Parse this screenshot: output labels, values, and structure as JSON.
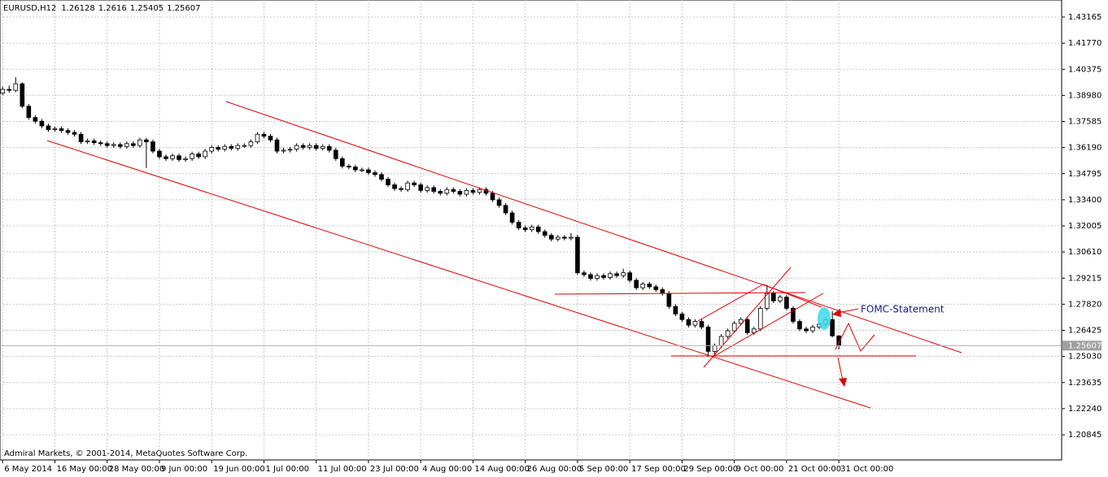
{
  "chart_data": {
    "type": "candlestick",
    "title": "EURUSD,H12",
    "ohlc": [
      [
        1.391,
        1.3945,
        1.39,
        1.393
      ],
      [
        1.393,
        1.395,
        1.3912,
        1.3925
      ],
      [
        1.3925,
        1.3995,
        1.3915,
        1.396
      ],
      [
        1.396,
        1.3968,
        1.383,
        1.384
      ],
      [
        1.384,
        1.3852,
        1.3768,
        1.378
      ],
      [
        1.378,
        1.3792,
        1.3748,
        1.376
      ],
      [
        1.376,
        1.3772,
        1.3723,
        1.3735
      ],
      [
        1.3735,
        1.3747,
        1.3703,
        1.3715
      ],
      [
        1.3715,
        1.3732,
        1.3703,
        1.372
      ],
      [
        1.372,
        1.3732,
        1.3698,
        1.371
      ],
      [
        1.371,
        1.3722,
        1.3688,
        1.37
      ],
      [
        1.37,
        1.3712,
        1.3678,
        1.369
      ],
      [
        1.369,
        1.3702,
        1.3638,
        1.365
      ],
      [
        1.365,
        1.3667,
        1.3638,
        1.3655
      ],
      [
        1.3655,
        1.3667,
        1.3633,
        1.3645
      ],
      [
        1.3645,
        1.3657,
        1.3628,
        1.364
      ],
      [
        1.364,
        1.3652,
        1.3618,
        1.363
      ],
      [
        1.363,
        1.3647,
        1.3618,
        1.3635
      ],
      [
        1.3635,
        1.3647,
        1.3613,
        1.3625
      ],
      [
        1.3625,
        1.3652,
        1.3613,
        1.364
      ],
      [
        1.364,
        1.3652,
        1.3618,
        1.363
      ],
      [
        1.363,
        1.3672,
        1.3618,
        1.366
      ],
      [
        1.366,
        1.3672,
        1.351,
        1.365
      ],
      [
        1.365,
        1.3662,
        1.3588,
        1.36
      ],
      [
        1.36,
        1.3612,
        1.3558,
        1.357
      ],
      [
        1.357,
        1.3582,
        1.3548,
        1.356
      ],
      [
        1.356,
        1.3587,
        1.3548,
        1.3575
      ],
      [
        1.3575,
        1.3587,
        1.3543,
        1.3555
      ],
      [
        1.3555,
        1.3572,
        1.3543,
        1.356
      ],
      [
        1.356,
        1.3597,
        1.3548,
        1.3585
      ],
      [
        1.3585,
        1.3597,
        1.3558,
        1.357
      ],
      [
        1.357,
        1.3612,
        1.3558,
        1.36
      ],
      [
        1.36,
        1.3632,
        1.3588,
        1.362
      ],
      [
        1.362,
        1.3632,
        1.3598,
        1.361
      ],
      [
        1.361,
        1.3637,
        1.3598,
        1.3625
      ],
      [
        1.3625,
        1.3637,
        1.3603,
        1.3615
      ],
      [
        1.3615,
        1.3642,
        1.3603,
        1.363
      ],
      [
        1.363,
        1.3642,
        1.3618,
        1.363
      ],
      [
        1.363,
        1.3662,
        1.3618,
        1.365
      ],
      [
        1.365,
        1.3702,
        1.3638,
        1.369
      ],
      [
        1.369,
        1.3702,
        1.3668,
        1.368
      ],
      [
        1.368,
        1.3692,
        1.3648,
        1.366
      ],
      [
        1.366,
        1.3672,
        1.3588,
        1.36
      ],
      [
        1.36,
        1.3617,
        1.3588,
        1.3605
      ],
      [
        1.3605,
        1.3622,
        1.3593,
        1.361
      ],
      [
        1.361,
        1.3642,
        1.3598,
        1.363
      ],
      [
        1.363,
        1.3642,
        1.3608,
        1.362
      ],
      [
        1.362,
        1.3642,
        1.3608,
        1.363
      ],
      [
        1.363,
        1.3642,
        1.3603,
        1.3615
      ],
      [
        1.3615,
        1.3637,
        1.3603,
        1.3625
      ],
      [
        1.3625,
        1.3637,
        1.3593,
        1.3605
      ],
      [
        1.3605,
        1.3617,
        1.3548,
        1.356
      ],
      [
        1.356,
        1.3572,
        1.3508,
        1.352
      ],
      [
        1.352,
        1.3532,
        1.3503,
        1.3515
      ],
      [
        1.3515,
        1.3527,
        1.3488,
        1.35
      ],
      [
        1.35,
        1.3512,
        1.3488,
        1.35
      ],
      [
        1.35,
        1.3512,
        1.3473,
        1.3485
      ],
      [
        1.3485,
        1.3497,
        1.3463,
        1.3475
      ],
      [
        1.3475,
        1.3487,
        1.3438,
        1.345
      ],
      [
        1.345,
        1.3462,
        1.3408,
        1.342
      ],
      [
        1.342,
        1.3432,
        1.3388,
        1.34
      ],
      [
        1.34,
        1.3412,
        1.3383,
        1.3395
      ],
      [
        1.3395,
        1.3442,
        1.3383,
        1.343
      ],
      [
        1.343,
        1.3442,
        1.3408,
        1.342
      ],
      [
        1.342,
        1.3432,
        1.3378,
        1.339
      ],
      [
        1.339,
        1.3417,
        1.3378,
        1.3405
      ],
      [
        1.3405,
        1.3417,
        1.3373,
        1.3385
      ],
      [
        1.3385,
        1.3397,
        1.3363,
        1.3375
      ],
      [
        1.3375,
        1.3407,
        1.3363,
        1.3395
      ],
      [
        1.3395,
        1.3407,
        1.3373,
        1.3385
      ],
      [
        1.3385,
        1.3397,
        1.3358,
        1.337
      ],
      [
        1.337,
        1.3402,
        1.3358,
        1.339
      ],
      [
        1.339,
        1.3402,
        1.3368,
        1.338
      ],
      [
        1.338,
        1.3407,
        1.3368,
        1.3395
      ],
      [
        1.3395,
        1.3407,
        1.3363,
        1.3375
      ],
      [
        1.3375,
        1.3387,
        1.3328,
        1.334
      ],
      [
        1.334,
        1.3352,
        1.3298,
        1.331
      ],
      [
        1.331,
        1.3322,
        1.3258,
        1.327
      ],
      [
        1.327,
        1.3282,
        1.3208,
        1.322
      ],
      [
        1.322,
        1.3232,
        1.3178,
        1.319
      ],
      [
        1.319,
        1.3202,
        1.3168,
        1.318
      ],
      [
        1.318,
        1.3207,
        1.3168,
        1.3195
      ],
      [
        1.3195,
        1.3207,
        1.3158,
        1.317
      ],
      [
        1.317,
        1.3182,
        1.3138,
        1.315
      ],
      [
        1.315,
        1.3162,
        1.3118,
        1.313
      ],
      [
        1.313,
        1.3152,
        1.3118,
        1.314
      ],
      [
        1.314,
        1.3152,
        1.3123,
        1.3135
      ],
      [
        1.3135,
        1.3162,
        1.3123,
        1.314
      ],
      [
        1.314,
        1.3152,
        1.2938,
        1.295
      ],
      [
        1.295,
        1.2962,
        1.2928,
        1.294
      ],
      [
        1.294,
        1.2952,
        1.2908,
        1.292
      ],
      [
        1.292,
        1.2947,
        1.2908,
        1.2935
      ],
      [
        1.2935,
        1.2947,
        1.2913,
        1.2925
      ],
      [
        1.2925,
        1.2957,
        1.2913,
        1.2945
      ],
      [
        1.2945,
        1.2957,
        1.2923,
        1.2935
      ],
      [
        1.2935,
        1.2972,
        1.2923,
        1.295
      ],
      [
        1.295,
        1.2962,
        1.2898,
        1.291
      ],
      [
        1.291,
        1.2922,
        1.2858,
        1.287
      ],
      [
        1.287,
        1.2902,
        1.2858,
        1.289
      ],
      [
        1.289,
        1.2902,
        1.2863,
        1.2875
      ],
      [
        1.2875,
        1.2887,
        1.2848,
        1.286
      ],
      [
        1.286,
        1.2872,
        1.2828,
        1.284
      ],
      [
        1.284,
        1.2852,
        1.2758,
        1.277
      ],
      [
        1.277,
        1.2782,
        1.2718,
        1.273
      ],
      [
        1.273,
        1.2742,
        1.2688,
        1.27
      ],
      [
        1.27,
        1.2712,
        1.2658,
        1.267
      ],
      [
        1.267,
        1.2702,
        1.2658,
        1.269
      ],
      [
        1.269,
        1.2702,
        1.2648,
        1.266
      ],
      [
        1.266,
        1.2672,
        1.25,
        1.253
      ],
      [
        1.253,
        1.2572,
        1.2505,
        1.256
      ],
      [
        1.256,
        1.2622,
        1.2548,
        1.261
      ],
      [
        1.261,
        1.2652,
        1.2598,
        1.264
      ],
      [
        1.264,
        1.2692,
        1.2628,
        1.268
      ],
      [
        1.268,
        1.2712,
        1.2668,
        1.27
      ],
      [
        1.27,
        1.2712,
        1.2618,
        1.263
      ],
      [
        1.263,
        1.2662,
        1.2618,
        1.265
      ],
      [
        1.265,
        1.2772,
        1.2638,
        1.276
      ],
      [
        1.276,
        1.2885,
        1.2748,
        1.284
      ],
      [
        1.284,
        1.2852,
        1.2788,
        1.28
      ],
      [
        1.28,
        1.2832,
        1.2788,
        1.282
      ],
      [
        1.282,
        1.2832,
        1.2748,
        1.276
      ],
      [
        1.276,
        1.2772,
        1.2678,
        1.269
      ],
      [
        1.269,
        1.2702,
        1.2638,
        1.265
      ],
      [
        1.265,
        1.2662,
        1.2628,
        1.264
      ],
      [
        1.264,
        1.2672,
        1.2628,
        1.266
      ],
      [
        1.266,
        1.2687,
        1.2648,
        1.2675
      ],
      [
        1.2675,
        1.2712,
        1.2663,
        1.27
      ],
      [
        1.27,
        1.2745,
        1.2605,
        1.2613
      ],
      [
        1.26128,
        1.2616,
        1.25405,
        1.25607
      ]
    ],
    "up_color": "#ffffff",
    "down_color": "#000000",
    "line_color": "#000000",
    "xlim": [
      -0.4,
      162.1
    ],
    "xticks": [
      {
        "value": 0,
        "label": "6 May 2014"
      },
      {
        "value": 8,
        "label": "16 May 00:00"
      },
      {
        "value": 16,
        "label": "28 May 00:00"
      },
      {
        "value": 24,
        "label": "9 Jun 00:00"
      },
      {
        "value": 32,
        "label": "19 Jun 00:00"
      },
      {
        "value": 40,
        "label": "1 Jul 00:00"
      },
      {
        "value": 48,
        "label": "11 Jul 00:00"
      },
      {
        "value": 56,
        "label": "23 Jul 00:00"
      },
      {
        "value": 64,
        "label": "4 Aug 00:00"
      },
      {
        "value": 72,
        "label": "14 Aug 00:00"
      },
      {
        "value": 80,
        "label": "26 Aug 00:00"
      },
      {
        "value": 88,
        "label": "5 Sep 00:00"
      },
      {
        "value": 96,
        "label": "17 Sep 00:00"
      },
      {
        "value": 104,
        "label": "29 Sep 00:00"
      },
      {
        "value": 112,
        "label": "9 Oct 00:00"
      },
      {
        "value": 120,
        "label": "21 Oct 00:00"
      },
      {
        "value": 128,
        "label": "31 Oct 00:00"
      }
    ],
    "ylim": [
      1.19499,
      1.44077
    ],
    "yticks": [
      1.43165,
      {
        "value": 1.4177,
        "label": "1.41770"
      },
      1.40375,
      {
        "value": 1.3898,
        "label": "1.38980"
      },
      1.37585,
      {
        "value": 1.3619,
        "label": "1.36190"
      },
      1.34795,
      {
        "value": 1.334,
        "label": "1.33400"
      },
      1.32005,
      {
        "value": 1.3061,
        "label": "1.30610"
      },
      1.29215,
      {
        "value": 1.2782,
        "label": "1.27820"
      },
      1.26425,
      {
        "value": 1.2503,
        "label": "1.25030"
      },
      1.23635,
      {
        "value": 1.2224,
        "label": "1.22240"
      },
      1.20845
    ],
    "grid": true,
    "annotation": "FOMC-Statement",
    "footer": "Admiral Markets, © 2001-2014, MetaQuotes Software Corp."
  }
}
